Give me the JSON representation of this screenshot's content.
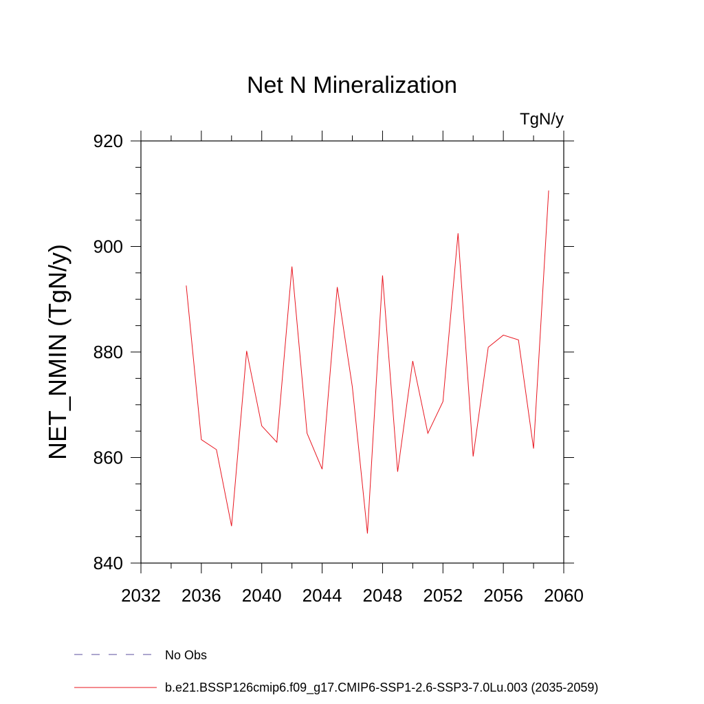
{
  "chart_data": {
    "type": "line",
    "title": "Net N Mineralization",
    "units_label": "TgN/y",
    "xlabel": "",
    "ylabel": "NET_NMIN  (TgN/y)",
    "xlim": [
      2032,
      2060
    ],
    "ylim": [
      840,
      920
    ],
    "x_ticks": [
      2032,
      2036,
      2040,
      2044,
      2048,
      2052,
      2056,
      2060
    ],
    "x_tick_labels": [
      "2032",
      "2036",
      "2040",
      "2044",
      "2048",
      "2052",
      "2056",
      "2060"
    ],
    "y_ticks": [
      840,
      860,
      880,
      900,
      920
    ],
    "y_tick_labels": [
      "840",
      "860",
      "880",
      "900",
      "920"
    ],
    "y_minor_step": 5,
    "x_minor_step": 2,
    "series": [
      {
        "name": "b.e21.BSSP126cmip6.f09_g17.CMIP6-SSP1-2.6-SSP3-7.0Lu.003 (2035-2059)",
        "color": "#e8141e",
        "x": [
          2035,
          2036,
          2037,
          2038,
          2039,
          2040,
          2041,
          2042,
          2043,
          2044,
          2045,
          2046,
          2047,
          2048,
          2049,
          2050,
          2051,
          2052,
          2053,
          2054,
          2055,
          2056,
          2057,
          2058,
          2059
        ],
        "values": [
          892.6,
          863.4,
          861.5,
          847.0,
          880.2,
          866.0,
          862.9,
          896.2,
          864.6,
          857.8,
          892.3,
          873.4,
          845.6,
          894.5,
          857.3,
          878.3,
          864.6,
          870.6,
          902.5,
          860.2,
          880.9,
          883.2,
          882.3,
          861.7,
          910.6
        ]
      }
    ],
    "legend": [
      {
        "label": "No Obs",
        "color": "#5a4c9e",
        "style": "dashed"
      },
      {
        "label": "b.e21.BSSP126cmip6.f09_g17.CMIP6-SSP1-2.6-SSP3-7.0Lu.003 (2035-2059)",
        "color": "#e8141e",
        "style": "solid"
      }
    ],
    "legend_position": "bottom"
  }
}
